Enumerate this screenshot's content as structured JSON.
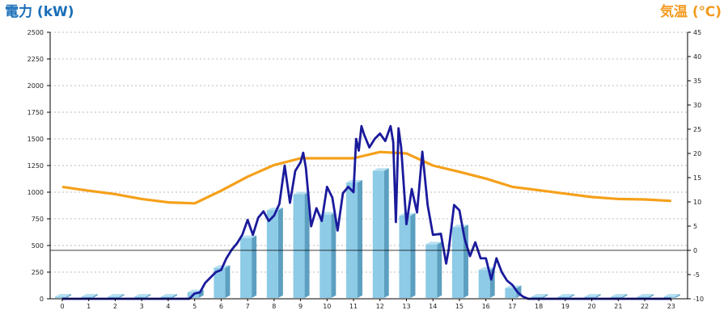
{
  "chart_data": {
    "type": "bar",
    "title": "",
    "xlabel": "",
    "ylabel": "電力 (kW)",
    "y2label": "気温 (℃)",
    "categories": [
      "0",
      "1",
      "2",
      "3",
      "4",
      "5",
      "6",
      "7",
      "8",
      "9",
      "10",
      "11",
      "12",
      "13",
      "14",
      "15",
      "16",
      "17",
      "18",
      "19",
      "20",
      "21",
      "22",
      "23"
    ],
    "ylim": [
      0,
      2500
    ],
    "y_ticks": [
      0,
      250,
      500,
      750,
      1000,
      1250,
      1500,
      1750,
      2000,
      2250,
      2500
    ],
    "y2lim": [
      -10,
      45
    ],
    "y2_ticks": [
      -10,
      -5,
      0,
      5,
      10,
      15,
      20,
      25,
      30,
      35,
      40,
      45
    ],
    "y2_reference_line": 0,
    "grid": true,
    "legend": "none",
    "series": [
      {
        "type": "bar",
        "axis": "left",
        "values": [
          20,
          20,
          20,
          20,
          20,
          60,
          290,
          570,
          830,
          980,
          790,
          1090,
          1200,
          780,
          510,
          670,
          270,
          100,
          20,
          20,
          20,
          20,
          20,
          20
        ]
      },
      {
        "type": "line",
        "axis": "left",
        "x": [
          0,
          1,
          2,
          3,
          4,
          4.8,
          5.0,
          5.2,
          5.4,
          5.6,
          5.8,
          6.0,
          6.2,
          6.4,
          6.6,
          6.8,
          7.0,
          7.2,
          7.4,
          7.6,
          7.8,
          8.0,
          8.2,
          8.4,
          8.6,
          8.8,
          9.0,
          9.1,
          9.2,
          9.4,
          9.6,
          9.8,
          10.0,
          10.2,
          10.4,
          10.6,
          10.8,
          11.0,
          11.1,
          11.2,
          11.3,
          11.4,
          11.6,
          11.8,
          12.0,
          12.2,
          12.4,
          12.5,
          12.6,
          12.7,
          12.8,
          13.0,
          13.2,
          13.4,
          13.6,
          13.8,
          14.0,
          14.3,
          14.5,
          14.6,
          14.8,
          15.0,
          15.2,
          15.4,
          15.6,
          15.8,
          16.0,
          16.2,
          16.4,
          16.6,
          16.8,
          17.0,
          17.2,
          17.4,
          17.6,
          18,
          19,
          20,
          21,
          22,
          23
        ],
        "values": [
          0,
          0,
          0,
          0,
          0,
          0,
          50,
          60,
          150,
          200,
          250,
          270,
          380,
          460,
          520,
          600,
          740,
          600,
          760,
          820,
          730,
          780,
          890,
          1250,
          900,
          1200,
          1280,
          1370,
          1230,
          680,
          850,
          730,
          1050,
          950,
          640,
          990,
          1050,
          1000,
          1500,
          1390,
          1620,
          1540,
          1420,
          1500,
          1550,
          1480,
          1620,
          1470,
          720,
          1600,
          1420,
          700,
          1030,
          810,
          1380,
          880,
          600,
          610,
          330,
          470,
          880,
          830,
          560,
          400,
          530,
          380,
          380,
          180,
          380,
          250,
          170,
          130,
          60,
          20,
          0,
          0,
          0,
          0,
          0,
          0,
          0
        ]
      },
      {
        "type": "line",
        "axis": "right",
        "x": [
          0,
          1,
          2,
          3,
          4,
          5,
          6,
          7,
          8,
          9,
          10,
          11,
          12,
          13,
          14,
          15,
          16,
          17,
          18,
          19,
          20,
          21,
          22,
          23
        ],
        "values": [
          13.1,
          12.3,
          11.6,
          10.6,
          9.9,
          9.7,
          12.3,
          15.2,
          17.6,
          19,
          19,
          19,
          20.3,
          20,
          17.5,
          16.2,
          14.8,
          13.1,
          12.4,
          11.7,
          11,
          10.6,
          10.5,
          10.2
        ]
      }
    ]
  },
  "colors": {
    "left_title": "#1a6fb8",
    "right_title": "#f39a1e",
    "bar_front": "#8dcbe6",
    "bar_side": "#5c9fc0",
    "bar_top": "#b7e0f2",
    "power_line": "#1a1a9c",
    "temp_line": "#f5a01a",
    "grid": "#bbbbbb",
    "axis": "#000000"
  }
}
